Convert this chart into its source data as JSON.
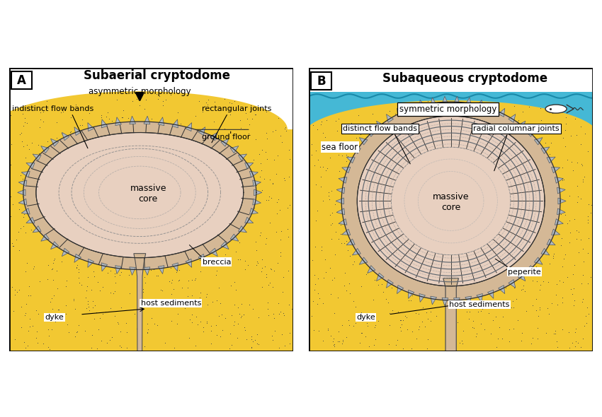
{
  "fig_width": 8.5,
  "fig_height": 5.9,
  "background_color": "#ffffff",
  "sediment_color": "#f2c832",
  "sediment_dot_color": "#444444",
  "core_color": "#e8d0c0",
  "shell_color": "#d4b896",
  "dyke_color": "#d4b896",
  "water_color": "#45b8d5",
  "wave_color": "#1a8aaa",
  "triangle_color": "#b0b8c0",
  "triangle_edge": "#505860",
  "radial_line_color": "#303030",
  "flow_band_color": "#606870",
  "panel_A_title": "Subaerial cryptodome",
  "panel_B_title": "Subaqueous cryptodome",
  "label_A": "A",
  "label_B": "B"
}
